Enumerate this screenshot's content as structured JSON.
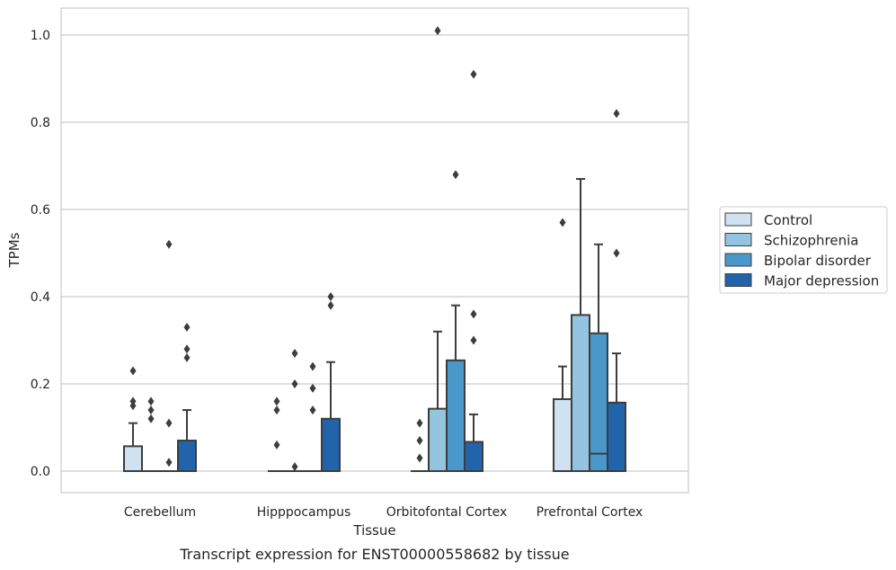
{
  "chart_data": {
    "type": "boxplot",
    "title": "",
    "caption": "Transcript expression for ENST00000558682 by tissue",
    "xlabel": "Tissue",
    "ylabel": "TPMs",
    "ylim": [
      -0.05,
      1.06
    ],
    "yticks": [
      0.0,
      0.2,
      0.4,
      0.6,
      0.8,
      1.0
    ],
    "ytick_labels": [
      "0.0",
      "0.2",
      "0.4",
      "0.6",
      "0.8",
      "1.0"
    ],
    "categories": [
      "Cerebellum",
      "Hipppocampus",
      "Orbitofontal Cortex",
      "Prefrontal Cortex"
    ],
    "grid": true,
    "legend_position": "right",
    "series": [
      {
        "name": "Control",
        "color": "#d0e1f2",
        "boxes": [
          {
            "q1": 0.0,
            "median": 0.0,
            "q3": 0.057,
            "whisker_low": 0.0,
            "whisker_high": 0.11,
            "outliers": [
              0.15,
              0.16,
              0.23
            ]
          },
          {
            "q1": 0.0,
            "median": 0.0,
            "q3": 0.0,
            "whisker_low": 0.0,
            "whisker_high": 0.0,
            "outliers": [
              0.06,
              0.14,
              0.16
            ]
          },
          {
            "q1": 0.0,
            "median": 0.0,
            "q3": 0.0,
            "whisker_low": 0.0,
            "whisker_high": 0.0,
            "outliers": [
              0.03,
              0.07,
              0.11
            ]
          },
          {
            "q1": 0.0,
            "median": 0.0,
            "q3": 0.165,
            "whisker_low": 0.0,
            "whisker_high": 0.24,
            "outliers": [
              0.57
            ]
          }
        ]
      },
      {
        "name": "Schizophrenia",
        "color": "#94c4df",
        "boxes": [
          {
            "q1": 0.0,
            "median": 0.0,
            "q3": 0.0,
            "whisker_low": 0.0,
            "whisker_high": 0.0,
            "outliers": [
              0.12,
              0.14,
              0.16
            ]
          },
          {
            "q1": 0.0,
            "median": 0.0,
            "q3": 0.0,
            "whisker_low": 0.0,
            "whisker_high": 0.0,
            "outliers": [
              0.01,
              0.2,
              0.27
            ]
          },
          {
            "q1": 0.0,
            "median": 0.0,
            "q3": 0.143,
            "whisker_low": 0.0,
            "whisker_high": 0.32,
            "outliers": [
              1.01
            ]
          },
          {
            "q1": 0.0,
            "median": 0.0,
            "q3": 0.358,
            "whisker_low": 0.0,
            "whisker_high": 0.67,
            "outliers": []
          }
        ]
      },
      {
        "name": "Bipolar disorder",
        "color": "#4a98c9",
        "boxes": [
          {
            "q1": 0.0,
            "median": 0.0,
            "q3": 0.0,
            "whisker_low": 0.0,
            "whisker_high": 0.0,
            "outliers": [
              0.02,
              0.11,
              0.52
            ]
          },
          {
            "q1": 0.0,
            "median": 0.0,
            "q3": 0.0,
            "whisker_low": 0.0,
            "whisker_high": 0.0,
            "outliers": [
              0.14,
              0.19,
              0.24
            ]
          },
          {
            "q1": 0.0,
            "median": 0.0,
            "q3": 0.254,
            "whisker_low": 0.0,
            "whisker_high": 0.38,
            "outliers": [
              0.68
            ]
          },
          {
            "q1": 0.0,
            "median": 0.04,
            "q3": 0.316,
            "whisker_low": 0.0,
            "whisker_high": 0.52,
            "outliers": []
          }
        ]
      },
      {
        "name": "Major depression",
        "color": "#2164ab",
        "boxes": [
          {
            "q1": 0.0,
            "median": 0.0,
            "q3": 0.07,
            "whisker_low": 0.0,
            "whisker_high": 0.14,
            "outliers": [
              0.26,
              0.28,
              0.33
            ]
          },
          {
            "q1": 0.0,
            "median": 0.0,
            "q3": 0.12,
            "whisker_low": 0.0,
            "whisker_high": 0.25,
            "outliers": [
              0.38,
              0.4
            ]
          },
          {
            "q1": 0.0,
            "median": 0.0,
            "q3": 0.067,
            "whisker_low": 0.0,
            "whisker_high": 0.13,
            "outliers": [
              0.3,
              0.36,
              0.91
            ]
          },
          {
            "q1": 0.0,
            "median": 0.0,
            "q3": 0.157,
            "whisker_low": 0.0,
            "whisker_high": 0.27,
            "outliers": [
              0.5,
              0.82
            ]
          }
        ]
      }
    ]
  }
}
